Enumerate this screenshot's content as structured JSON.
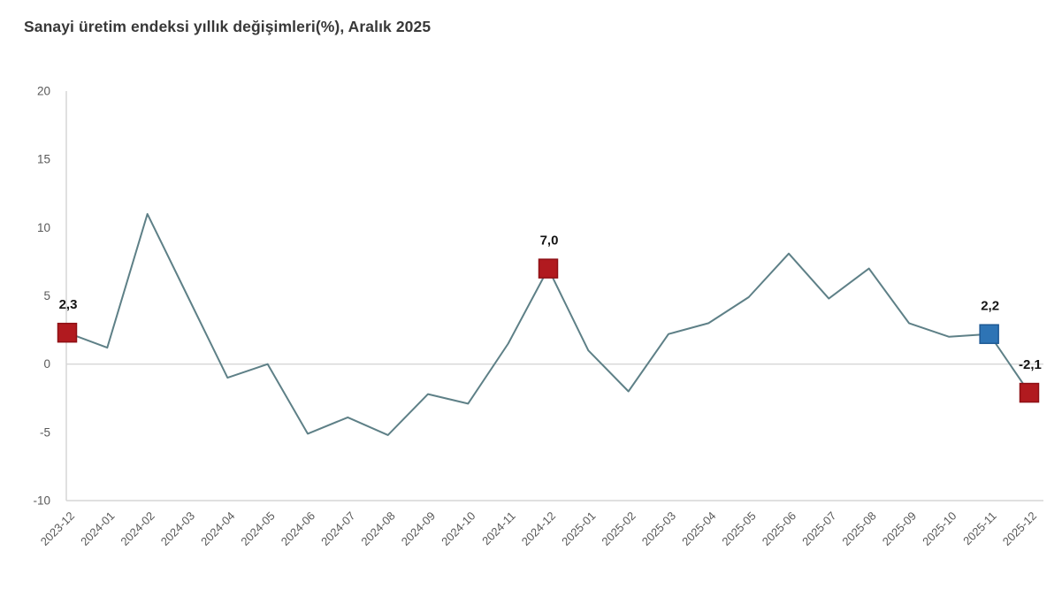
{
  "page": {
    "title": "Sanayi üretim endeksi yıllık değişimleri(%), Aralık 2025"
  },
  "chart_data": {
    "type": "line",
    "title": "Sanayi üretim endeksi yıllık değişimleri(%), Aralık 2025",
    "xlabel": "",
    "ylabel": "",
    "ylim": [
      -10,
      20
    ],
    "yticks": [
      20,
      15,
      10,
      5,
      0,
      -5,
      -10
    ],
    "grid": "zero-line-only",
    "legend_position": "none",
    "categories": [
      "2023-12",
      "2024-01",
      "2024-02",
      "2024-03",
      "2024-04",
      "2024-05",
      "2024-06",
      "2024-07",
      "2024-08",
      "2024-09",
      "2024-10",
      "2024-11",
      "2024-12",
      "2025-01",
      "2025-02",
      "2025-03",
      "2025-04",
      "2025-05",
      "2025-06",
      "2025-07",
      "2025-08",
      "2025-09",
      "2025-10",
      "2025-11",
      "2025-12"
    ],
    "series": [
      {
        "name": "Sanayi üretim endeksi yıllık değişim (%)",
        "values": [
          2.3,
          1.2,
          11.0,
          5.0,
          -1.0,
          0.0,
          -5.1,
          -3.9,
          -5.2,
          -2.2,
          -2.9,
          1.5,
          7.0,
          1.0,
          -2.0,
          2.2,
          3.0,
          4.9,
          8.1,
          4.8,
          7.0,
          3.0,
          2.0,
          2.2,
          -2.1
        ]
      }
    ],
    "highlighted_points": [
      {
        "category": "2023-12",
        "value": 2.3,
        "label": "2,3",
        "marker": "square",
        "marker_color": "#B11A1F"
      },
      {
        "category": "2024-12",
        "value": 7.0,
        "label": "7,0",
        "marker": "square",
        "marker_color": "#B11A1F"
      },
      {
        "category": "2025-11",
        "value": 2.2,
        "label": "2,2",
        "marker": "square",
        "marker_color": "#2E74B5"
      },
      {
        "category": "2025-12",
        "value": -2.1,
        "label": "-2,1",
        "marker": "square",
        "marker_color": "#B11A1F"
      }
    ],
    "colors": {
      "line": "#5E8087",
      "axis": "#D6D6D6",
      "tick_text": "#595959",
      "title_text": "#383838",
      "point_label_text": "#141414",
      "red_marker": "#B11A1F",
      "red_marker_border": "#8E1015",
      "blue_marker": "#2E74B5",
      "blue_marker_border": "#1F5A94"
    }
  }
}
